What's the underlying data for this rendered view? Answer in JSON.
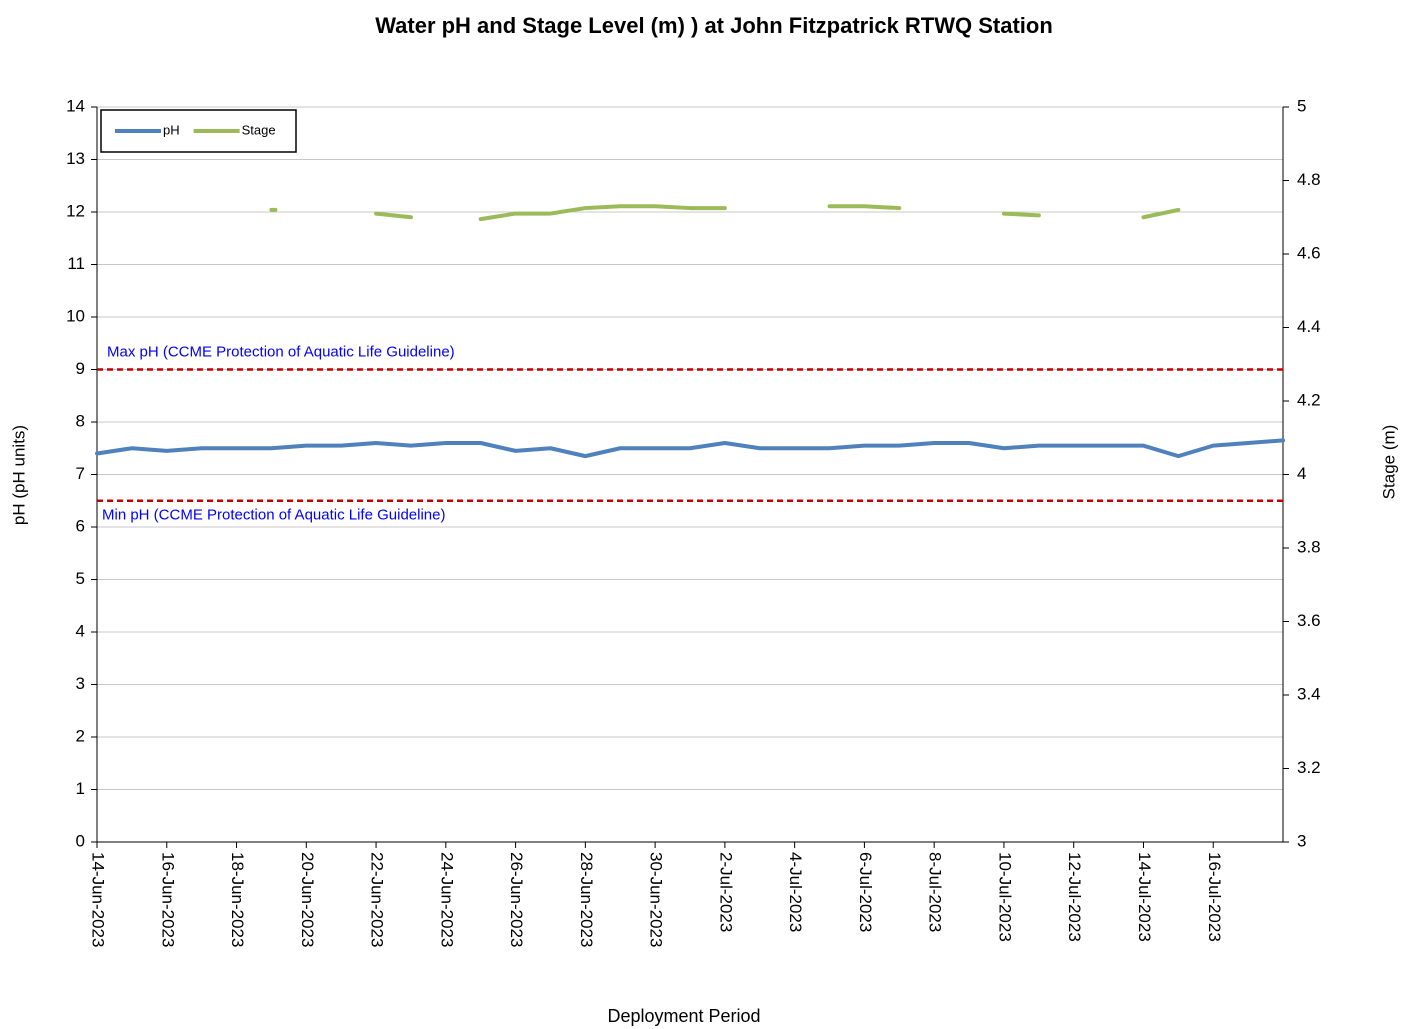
{
  "chart_data": {
    "type": "line",
    "title": "Water pH and Stage Level (m) ) at John Fitzpatrick RTWQ Station",
    "x_label": "Deployment Period",
    "y_label": "pH (pH units)",
    "y2_label": "Stage (m)",
    "x": [
      "14-Jun-2023",
      "15-Jun-2023",
      "16-Jun-2023",
      "17-Jun-2023",
      "18-Jun-2023",
      "19-Jun-2023",
      "20-Jun-2023",
      "21-Jun-2023",
      "22-Jun-2023",
      "23-Jun-2023",
      "24-Jun-2023",
      "25-Jun-2023",
      "26-Jun-2023",
      "27-Jun-2023",
      "28-Jun-2023",
      "29-Jun-2023",
      "30-Jun-2023",
      "1-Jul-2023",
      "2-Jul-2023",
      "3-Jul-2023",
      "4-Jul-2023",
      "5-Jul-2023",
      "6-Jul-2023",
      "7-Jul-2023",
      "8-Jul-2023",
      "9-Jul-2023",
      "10-Jul-2023",
      "11-Jul-2023",
      "12-Jul-2023",
      "13-Jul-2023",
      "14-Jul-2023",
      "15-Jul-2023",
      "16-Jul-2023",
      "17-Jul-2023",
      "18-Jul-2023"
    ],
    "series": [
      {
        "name": "pH",
        "color": "#4f81bd",
        "values": [
          7.4,
          7.5,
          7.45,
          7.5,
          7.5,
          7.5,
          7.55,
          7.55,
          7.6,
          7.55,
          7.6,
          7.6,
          7.45,
          7.5,
          7.35,
          7.5,
          7.5,
          7.5,
          7.6,
          7.5,
          7.5,
          7.5,
          7.55,
          7.55,
          7.6,
          7.6,
          7.5,
          7.55,
          7.55,
          7.55,
          7.55,
          7.35,
          7.55,
          7.6,
          7.65
        ]
      },
      {
        "name": "Stage",
        "color": "#9bbb59",
        "axis": "y2",
        "values": [
          null,
          null,
          null,
          null,
          null,
          4.72,
          null,
          null,
          4.71,
          4.7,
          null,
          4.695,
          4.71,
          4.71,
          4.725,
          4.73,
          4.73,
          4.725,
          4.725,
          null,
          null,
          4.73,
          4.73,
          4.725,
          null,
          null,
          4.71,
          4.705,
          null,
          null,
          4.7,
          4.72,
          null,
          null,
          null
        ]
      }
    ],
    "annotations": [
      {
        "text": "Max pH (CCME Protection of Aquatic Life Guideline)",
        "value": 9,
        "color": "#c00000"
      },
      {
        "text": "Min pH (CCME Protection of Aquatic Life Guideline)",
        "value": 6.5,
        "color": "#c00000"
      }
    ],
    "xlim": [
      "14-Jun-2023",
      "18-Jul-2023"
    ],
    "xticks": [
      "14-Jun-2023",
      "16-Jun-2023",
      "18-Jun-2023",
      "20-Jun-2023",
      "22-Jun-2023",
      "24-Jun-2023",
      "26-Jun-2023",
      "28-Jun-2023",
      "30-Jun-2023",
      "2-Jul-2023",
      "4-Jul-2023",
      "6-Jul-2023",
      "8-Jul-2023",
      "10-Jul-2023",
      "12-Jul-2023",
      "14-Jul-2023",
      "16-Jul-2023"
    ],
    "ylim": [
      0,
      14
    ],
    "yticks": [
      0,
      1,
      2,
      3,
      4,
      5,
      6,
      7,
      8,
      9,
      10,
      11,
      12,
      13,
      14
    ],
    "y2lim": [
      3,
      5
    ],
    "y2ticks": [
      3,
      3.2,
      3.4,
      3.6,
      3.8,
      4,
      4.2,
      4.4,
      4.6,
      4.8,
      5
    ],
    "grid": true,
    "legend": "top-left"
  }
}
